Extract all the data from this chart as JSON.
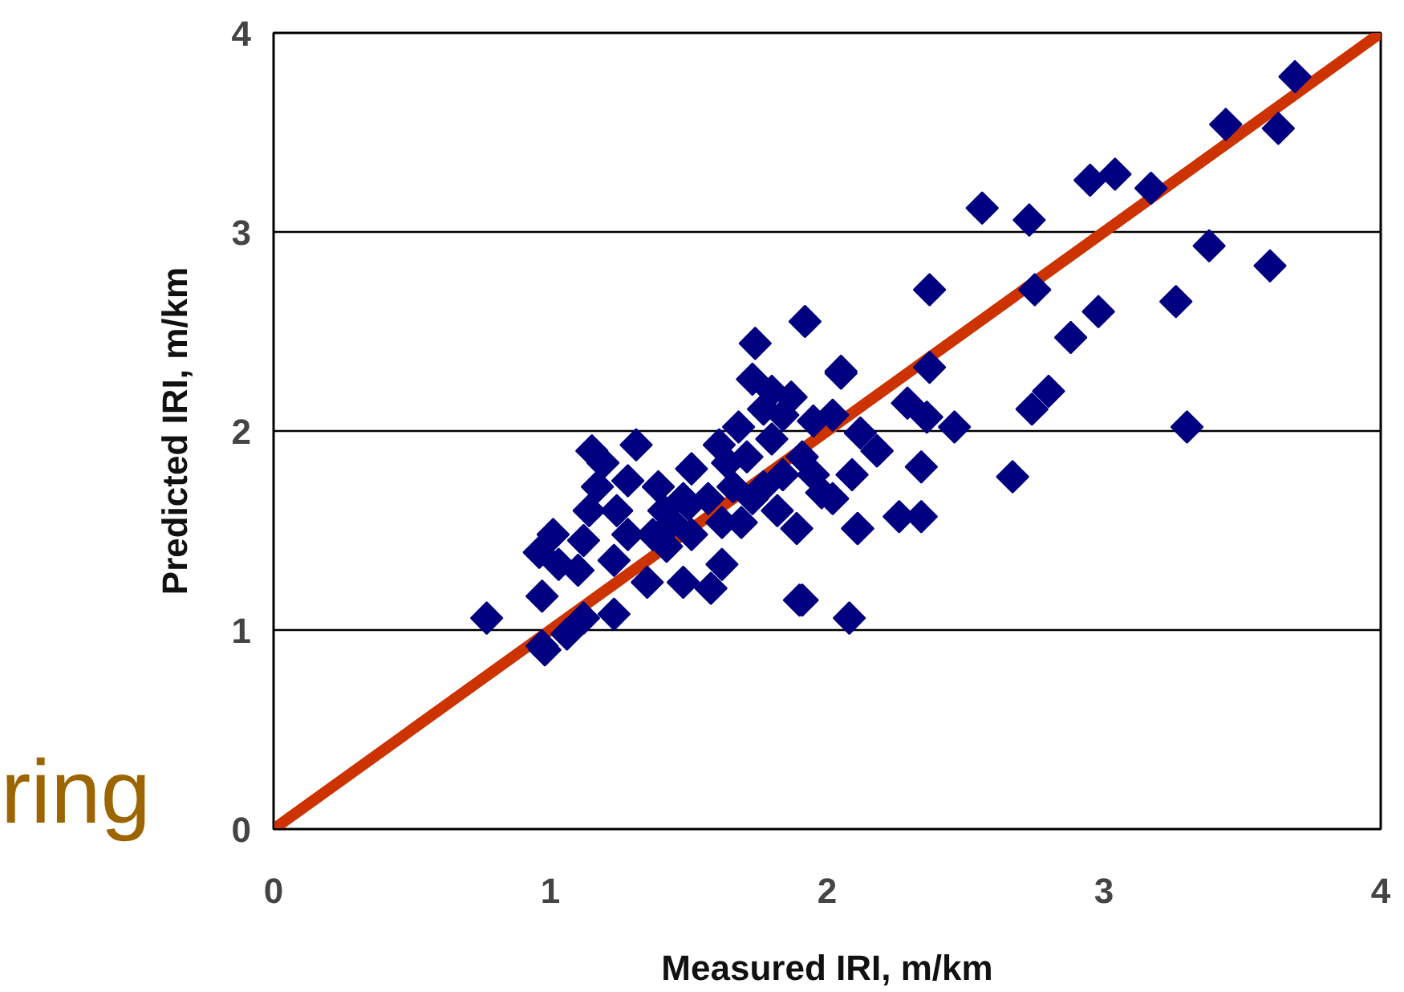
{
  "chart_data": {
    "type": "scatter",
    "xlabel": "Measured IRI, m/km",
    "ylabel": "Predicted IRI, m/km",
    "xlim": [
      0,
      4
    ],
    "ylim": [
      0,
      4
    ],
    "xticks": [
      0,
      1,
      2,
      3,
      4
    ],
    "yticks": [
      0,
      1,
      2,
      3,
      4
    ],
    "grid": "y",
    "marker": "diamond",
    "annotations": [
      "ring"
    ],
    "series": [
      {
        "color": "#000080",
        "x": [
          3.69,
          3.63,
          3.44,
          3.17,
          3.04,
          2.95,
          2.56,
          2.73,
          3.38,
          3.6,
          2.37,
          2.75,
          3.26,
          2.98,
          2.88,
          2.8,
          2.74,
          3.3,
          2.46,
          2.37,
          2.34,
          2.67,
          2.29,
          2.36,
          2.05,
          2.18,
          2.26,
          2.34,
          2.08,
          1.9,
          0.77,
          2.11,
          1.92,
          1.74,
          0.97,
          0.96,
          1.01,
          0.98,
          1.06,
          0.97,
          1.12,
          1.19,
          1.17,
          1.14,
          1.12,
          1.23,
          1.23,
          1.31,
          1.24,
          1.28,
          1.39,
          1.37,
          1.41,
          1.35,
          1.48,
          1.48,
          1.51,
          1.58,
          1.62,
          1.61,
          1.68,
          1.73,
          1.8,
          1.87,
          1.71,
          1.77,
          1.82,
          1.69,
          1.66,
          1.91,
          1.95,
          2.05,
          2.02,
          2.12,
          1.89,
          1.98,
          2.09,
          2.18,
          2.11,
          1.91,
          1.51,
          1.42,
          1.57,
          1.44,
          1.8,
          1.84,
          1.77,
          1.28,
          1.1,
          1.03,
          1.15,
          1.5,
          1.64,
          1.84,
          1.73,
          1.62,
          1.95,
          2.02
        ],
        "values": [
          3.78,
          3.52,
          3.54,
          3.22,
          3.29,
          3.26,
          3.12,
          3.06,
          2.93,
          2.83,
          2.71,
          2.71,
          2.65,
          2.6,
          2.47,
          2.2,
          2.11,
          2.02,
          2.02,
          2.32,
          1.82,
          1.77,
          2.14,
          2.07,
          2.3,
          1.9,
          1.57,
          1.57,
          1.06,
          1.15,
          1.06,
          1.51,
          2.55,
          2.44,
          0.92,
          1.39,
          1.48,
          0.9,
          0.98,
          1.17,
          1.06,
          1.84,
          1.72,
          1.6,
          1.45,
          1.08,
          1.35,
          1.93,
          1.6,
          1.48,
          1.72,
          1.48,
          1.6,
          1.24,
          1.24,
          1.66,
          1.81,
          1.21,
          1.33,
          1.93,
          2.02,
          2.26,
          2.2,
          2.17,
          1.87,
          1.72,
          1.6,
          1.54,
          1.72,
          1.87,
          2.05,
          2.29,
          2.08,
          1.99,
          1.51,
          1.69,
          1.78,
          1.9,
          1.51,
          1.15,
          1.48,
          1.42,
          1.66,
          1.54,
          1.96,
          2.08,
          2.11,
          1.75,
          1.3,
          1.33,
          1.9,
          1.63,
          1.84,
          1.78,
          1.66,
          1.54,
          1.78,
          1.66
        ]
      },
      {
        "type": "line",
        "color": "#cc3300",
        "x": [
          0,
          4
        ],
        "values": [
          0,
          4
        ],
        "marker": "none"
      }
    ]
  }
}
